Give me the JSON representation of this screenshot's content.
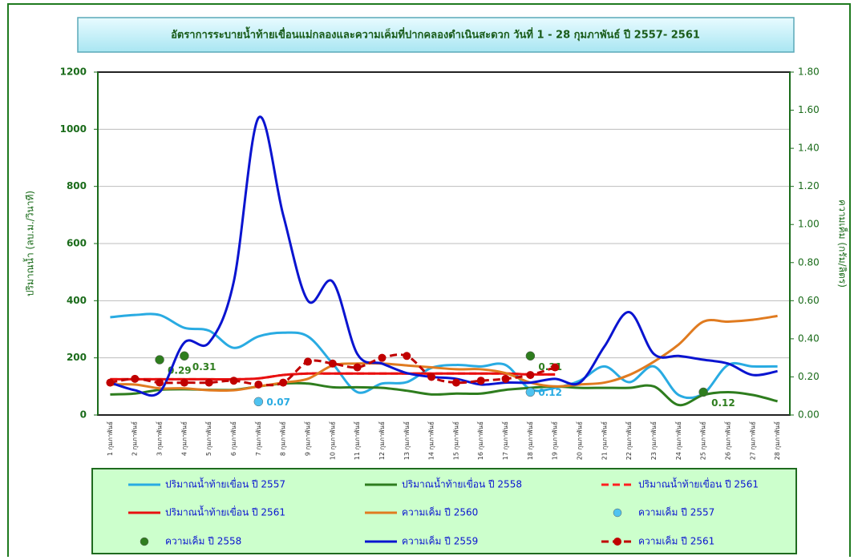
{
  "chart_data": {
    "type": "line",
    "title": "อัตราการระบายน้ำท้ายเขื่อนแม่กลองและความเค็มที่ปากคลองดำเนินสะดวก วันที่  1 - 28 กุมภาพันธ์ ปี 2557- 2561",
    "y_label": "ปริมาณน้ำ (ลบ.ม./วินาที)",
    "y2_label": "ความเค็ม (กรัม/ลิตร)",
    "categories": [
      "1 กุมภาพันธ์",
      "2 กุมภาพันธ์",
      "3 กุมภาพันธ์",
      "4 กุมภาพันธ์",
      "5 กุมภาพันธ์",
      "6 กุมภาพันธ์",
      "7 กุมภาพันธ์",
      "8 กุมภาพันธ์",
      "9 กุมภาพันธ์",
      "10 กุมภาพันธ์",
      "11 กุมภาพันธ์",
      "12 กุมภาพันธ์",
      "13 กุมภาพันธ์",
      "14 กุมภาพันธ์",
      "15 กุมภาพันธ์",
      "16 กุมภาพันธ์",
      "17 กุมภาพันธ์",
      "18 กุมภาพันธ์",
      "19 กุมภาพันธ์",
      "20 กุมภาพันธ์",
      "21 กุมภาพันธ์",
      "22 กุมภาพันธ์",
      "23 กุมภาพันธ์",
      "24 กุมภาพันธ์",
      "25 กุมภาพันธ์",
      "26 กุมภาพันธ์",
      "27 กุมภาพันธ์",
      "28 กุมภาพันธ์"
    ],
    "ylim": [
      0,
      1200
    ],
    "yticks": [
      0,
      200,
      400,
      600,
      800,
      1000,
      1200
    ],
    "y2lim": [
      0,
      1.8
    ],
    "y2ticks": [
      {
        "value": 0,
        "label": "0.00"
      },
      {
        "value": 0.2,
        "label": "0.20"
      },
      {
        "value": 0.4,
        "label": "0.40"
      },
      {
        "value": 0.6,
        "label": "0.60"
      },
      {
        "value": 0.8,
        "label": "0.80"
      },
      {
        "value": 1.0,
        "label": "1.00"
      },
      {
        "value": 1.2,
        "label": "1.20"
      },
      {
        "value": 1.4,
        "label": "1.40"
      },
      {
        "value": 1.6,
        "label": "1.60"
      },
      {
        "value": 1.8,
        "label": "1.80"
      }
    ],
    "grid": true,
    "series": [
      {
        "name": "ปริมาณน้ำท้ายเขื่อน ปี 2557",
        "color": "#29abe2",
        "style": "line",
        "values": [
          342,
          350,
          350,
          305,
          295,
          235,
          275,
          288,
          275,
          180,
          80,
          110,
          115,
          165,
          175,
          170,
          175,
          90,
          95,
          120,
          170,
          115,
          170,
          70,
          75,
          175,
          170,
          170
        ]
      },
      {
        "name": "ปริมาณน้ำท้ายเขื่อน ปี 2558",
        "color": "#2e7d1e",
        "style": "line",
        "values": [
          72,
          75,
          88,
          90,
          88,
          88,
          100,
          110,
          110,
          97,
          97,
          95,
          85,
          72,
          75,
          75,
          88,
          95,
          100,
          95,
          95,
          95,
          100,
          35,
          70,
          80,
          70,
          48
        ]
      },
      {
        "name": "ปริมาณน้ำท้ายเขื่อน ปี 2561",
        "color": "#ff2020",
        "style": "line",
        "dash": true,
        "values": [
          125,
          125,
          125,
          125,
          125,
          125,
          128,
          140,
          145,
          145,
          145,
          145,
          145,
          145,
          145,
          145,
          145,
          142,
          142,
          null,
          null,
          null,
          null,
          null,
          null,
          null,
          null,
          null
        ]
      },
      {
        "name": "ปริมาณน้ำท้ายเขื่อน ปี 2561",
        "color": "#e81010",
        "style": "line",
        "values": [
          125,
          125,
          125,
          125,
          125,
          125,
          128,
          140,
          145,
          145,
          145,
          145,
          145,
          145,
          145,
          145,
          145,
          142,
          142,
          null,
          null,
          null,
          null,
          null,
          null,
          null,
          null,
          null
        ]
      },
      {
        "name": "ความเค็ม ปี 2560",
        "color": "#e07b20",
        "style": "line",
        "axis": "y2",
        "values": [
          0.16,
          0.16,
          0.14,
          0.14,
          0.13,
          0.13,
          0.15,
          0.17,
          0.19,
          0.26,
          0.27,
          0.27,
          0.26,
          0.25,
          0.24,
          0.24,
          0.22,
          0.17,
          0.15,
          0.16,
          0.17,
          0.21,
          0.28,
          0.37,
          0.49,
          0.49,
          0.5,
          0.52
        ]
      },
      {
        "name": "ความเค็ม ปี 2557",
        "color": "#4fc3f0",
        "style": "dots",
        "axis": "y2",
        "data_labels": true,
        "values": [
          null,
          null,
          null,
          null,
          null,
          null,
          0.07,
          null,
          null,
          null,
          null,
          null,
          null,
          null,
          null,
          null,
          null,
          0.12,
          null,
          null,
          null,
          null,
          null,
          null,
          null,
          null,
          null,
          null
        ]
      },
      {
        "name": "ความเค็ม ปี 2558",
        "color": "#2e7d1e",
        "style": "dots",
        "axis": "y2",
        "data_labels": true,
        "values": [
          null,
          null,
          0.29,
          0.31,
          null,
          null,
          null,
          null,
          null,
          null,
          null,
          null,
          null,
          null,
          null,
          null,
          null,
          0.31,
          null,
          null,
          null,
          null,
          null,
          null,
          0.12,
          null,
          null,
          null
        ]
      },
      {
        "name": "ความเค็ม ปี 2559",
        "color": "#0a14d0",
        "style": "line",
        "axis": "y2",
        "values": [
          0.17,
          0.13,
          0.12,
          0.38,
          0.38,
          0.7,
          1.56,
          1.05,
          0.6,
          0.7,
          0.32,
          0.27,
          0.22,
          0.2,
          0.19,
          0.16,
          0.17,
          0.17,
          0.19,
          0.17,
          0.36,
          0.54,
          0.32,
          0.31,
          0.29,
          0.27,
          0.21,
          0.23
        ]
      },
      {
        "name": "ความเค็ม ปี 2561",
        "color": "#c00000",
        "style": "line",
        "dash": true,
        "markers": true,
        "axis": "y2",
        "values": [
          0.17,
          0.19,
          0.17,
          0.17,
          0.17,
          0.18,
          0.16,
          0.17,
          0.28,
          0.27,
          0.25,
          0.3,
          0.31,
          0.2,
          0.17,
          0.18,
          0.19,
          0.21,
          0.25,
          null,
          null,
          null,
          null,
          null,
          null,
          null,
          null,
          null
        ]
      }
    ]
  }
}
